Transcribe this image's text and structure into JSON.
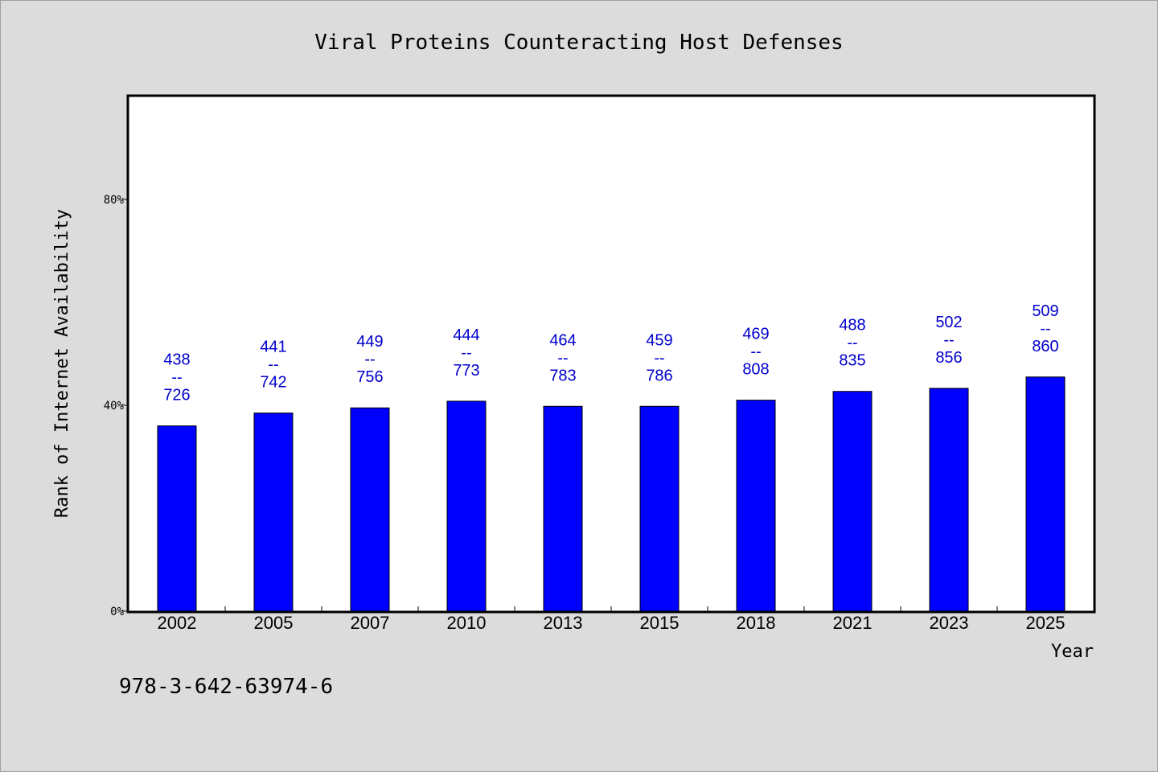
{
  "chart_data": {
    "type": "bar",
    "title": "Viral Proteins Counteracting Host Defenses",
    "xlabel": "Year",
    "ylabel": "Rank of Internet Availability",
    "ylim": [
      0,
      100
    ],
    "yticks": [
      {
        "value": 0,
        "label": "0%"
      },
      {
        "value": 40,
        "label": "40%"
      },
      {
        "value": 80,
        "label": "80%"
      }
    ],
    "categories": [
      "2002",
      "2005",
      "2007",
      "2010",
      "2013",
      "2015",
      "2018",
      "2021",
      "2023",
      "2025"
    ],
    "values": [
      36,
      38.5,
      39.5,
      40.8,
      39.8,
      39.8,
      41,
      42.7,
      43.3,
      45.5
    ],
    "data_labels": [
      {
        "top": "438",
        "sep": "--",
        "bottom": "726"
      },
      {
        "top": "441",
        "sep": "--",
        "bottom": "742"
      },
      {
        "top": "449",
        "sep": "--",
        "bottom": "756"
      },
      {
        "top": "444",
        "sep": "--",
        "bottom": "773"
      },
      {
        "top": "464",
        "sep": "--",
        "bottom": "783"
      },
      {
        "top": "459",
        "sep": "--",
        "bottom": "786"
      },
      {
        "top": "469",
        "sep": "--",
        "bottom": "808"
      },
      {
        "top": "488",
        "sep": "--",
        "bottom": "835"
      },
      {
        "top": "502",
        "sep": "--",
        "bottom": "856"
      },
      {
        "top": "509",
        "sep": "--",
        "bottom": "860"
      }
    ],
    "bar_color": "#0000ff",
    "label_color": "#0000cc",
    "grid": false
  },
  "footnote": "978-3-642-63974-6"
}
